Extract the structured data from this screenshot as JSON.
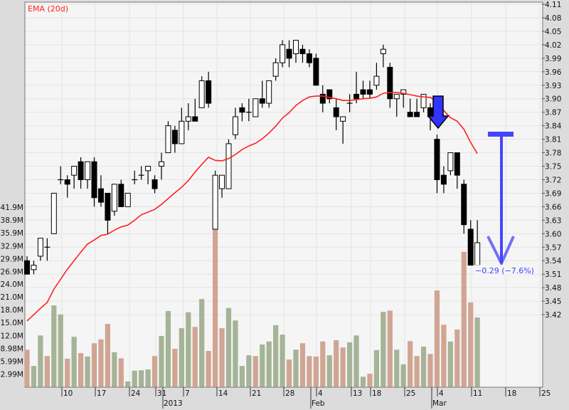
{
  "chart_data": {
    "type": "candlestick",
    "legend": {
      "ema_label": "EMA (20d)",
      "placement": "top-left"
    },
    "colors": {
      "ema": "#ff2020",
      "volume_up": "#a5b396",
      "volume_down": "#d0a593",
      "annotation": "#3333ff",
      "measure_label": "#4444ff",
      "plot_bg": "#f5f5f5",
      "grid": "#e4e4e4"
    },
    "grid": true,
    "price_axis": {
      "side": "right",
      "range": [
        3.42,
        4.11
      ],
      "ticks": [
        "4.11",
        "4.08",
        "4.05",
        "4.02",
        "3.99",
        "3.96",
        "3.93",
        "3.90",
        "3.87",
        "3.84",
        "3.81",
        "3.78",
        "3.75",
        "3.72",
        "3.69",
        "3.66",
        "3.63",
        "3.60",
        "3.57",
        "3.54",
        "3.51",
        "3.48",
        "3.45",
        "3.42"
      ]
    },
    "volume_axis": {
      "side": "left",
      "ticks": [
        {
          "label": "41.9M",
          "value": 41.9
        },
        {
          "label": "38.9M",
          "value": 38.9
        },
        {
          "label": "35.9M",
          "value": 35.9
        },
        {
          "label": "32.9M",
          "value": 32.9
        },
        {
          "label": "29.9M",
          "value": 29.9
        },
        {
          "label": "26.9M",
          "value": 26.9
        },
        {
          "label": "24.0M",
          "value": 24.0
        },
        {
          "label": "21.0M",
          "value": 21.0
        },
        {
          "label": "18.0M",
          "value": 18.0
        },
        {
          "label": "15.0M",
          "value": 15.0
        },
        {
          "label": "12.0M",
          "value": 12.0
        },
        {
          "label": "8.98M",
          "value": 8.98
        },
        {
          "label": "5.99M",
          "value": 5.99
        },
        {
          "label": "2.99M",
          "value": 2.99
        }
      ]
    },
    "x_axis": {
      "day_ticks": [
        "10",
        "17",
        "24",
        "31",
        "7",
        "14",
        "21",
        "28",
        "4",
        "13",
        "18",
        "25",
        "4",
        "11",
        "18",
        "25"
      ],
      "month_labels": [
        "2013",
        "Feb",
        "Mar"
      ]
    },
    "ohlc": [
      [
        3.54,
        3.55,
        3.51,
        3.51
      ],
      [
        3.52,
        3.54,
        3.51,
        3.53
      ],
      [
        3.55,
        3.59,
        3.54,
        3.59
      ],
      [
        3.57,
        3.59,
        3.54,
        3.57
      ],
      [
        3.6,
        3.69,
        3.6,
        3.69
      ],
      [
        3.72,
        3.75,
        3.71,
        3.72
      ],
      [
        3.72,
        3.73,
        3.68,
        3.71
      ],
      [
        3.73,
        3.75,
        3.7,
        3.75
      ],
      [
        3.76,
        3.77,
        3.7,
        3.72
      ],
      [
        3.72,
        3.76,
        3.7,
        3.76
      ],
      [
        3.76,
        3.77,
        3.66,
        3.68
      ],
      [
        3.7,
        3.73,
        3.66,
        3.67
      ],
      [
        3.69,
        3.69,
        3.6,
        3.63
      ],
      [
        3.65,
        3.71,
        3.64,
        3.71
      ],
      [
        3.71,
        3.72,
        3.66,
        3.66
      ],
      [
        3.66,
        3.69,
        3.66,
        3.69
      ],
      [
        3.72,
        3.74,
        3.71,
        3.72
      ],
      [
        3.73,
        3.75,
        3.72,
        3.73
      ],
      [
        3.74,
        3.75,
        3.71,
        3.75
      ],
      [
        3.72,
        3.73,
        3.69,
        3.7
      ],
      [
        3.75,
        3.78,
        3.72,
        3.76
      ],
      [
        3.78,
        3.85,
        3.78,
        3.84
      ],
      [
        3.83,
        3.84,
        3.78,
        3.8
      ],
      [
        3.8,
        3.88,
        3.8,
        3.85
      ],
      [
        3.85,
        3.89,
        3.83,
        3.86
      ],
      [
        3.86,
        3.9,
        3.85,
        3.85
      ],
      [
        3.88,
        3.95,
        3.88,
        3.94
      ],
      [
        3.94,
        3.96,
        3.88,
        3.89
      ],
      [
        3.61,
        3.74,
        3.61,
        3.73
      ],
      [
        3.7,
        3.73,
        3.68,
        3.73
      ],
      [
        3.7,
        3.81,
        3.7,
        3.8
      ],
      [
        3.82,
        3.88,
        3.81,
        3.86
      ],
      [
        3.88,
        3.89,
        3.85,
        3.87
      ],
      [
        3.87,
        3.9,
        3.85,
        3.87
      ],
      [
        3.86,
        3.9,
        3.86,
        3.9
      ],
      [
        3.9,
        3.94,
        3.88,
        3.89
      ],
      [
        3.89,
        3.94,
        3.88,
        3.94
      ],
      [
        3.95,
        3.99,
        3.94,
        3.98
      ],
      [
        3.98,
        4.03,
        3.97,
        4.02
      ],
      [
        4.01,
        4.03,
        3.97,
        3.99
      ],
      [
        4.0,
        4.03,
        3.98,
        4.03
      ],
      [
        4.01,
        4.02,
        3.98,
        4.0
      ],
      [
        4.0,
        4.01,
        3.97,
        3.98
      ],
      [
        3.99,
        4.0,
        3.93,
        3.93
      ],
      [
        3.91,
        3.93,
        3.87,
        3.89
      ],
      [
        3.92,
        3.92,
        3.89,
        3.9
      ],
      [
        3.88,
        3.9,
        3.83,
        3.86
      ],
      [
        3.85,
        3.86,
        3.8,
        3.86
      ],
      [
        3.89,
        3.91,
        3.87,
        3.89
      ],
      [
        3.91,
        3.96,
        3.89,
        3.9
      ],
      [
        3.92,
        3.94,
        3.9,
        3.91
      ],
      [
        3.92,
        3.94,
        3.9,
        3.91
      ],
      [
        3.93,
        3.98,
        3.92,
        3.95
      ],
      [
        4.0,
        4.02,
        3.97,
        4.01
      ],
      [
        3.97,
        3.98,
        3.88,
        3.9
      ],
      [
        3.9,
        3.91,
        3.86,
        3.91
      ],
      [
        3.91,
        3.92,
        3.88,
        3.92
      ],
      [
        3.87,
        3.9,
        3.86,
        3.86
      ],
      [
        3.87,
        3.9,
        3.86,
        3.86
      ],
      [
        3.88,
        3.91,
        3.87,
        3.91
      ],
      [
        3.88,
        3.89,
        3.83,
        3.86
      ],
      [
        3.81,
        3.82,
        3.69,
        3.72
      ],
      [
        3.73,
        3.75,
        3.69,
        3.71
      ],
      [
        3.74,
        3.78,
        3.73,
        3.78
      ],
      [
        3.78,
        3.78,
        3.7,
        3.73
      ],
      [
        3.71,
        3.72,
        3.6,
        3.62
      ],
      [
        3.61,
        3.63,
        3.53,
        3.53
      ],
      [
        3.53,
        3.63,
        3.53,
        3.58
      ]
    ],
    "ema20": [
      3.406,
      3.42,
      3.434,
      3.447,
      3.477,
      3.499,
      3.521,
      3.54,
      3.559,
      3.577,
      3.586,
      3.596,
      3.599,
      3.608,
      3.615,
      3.619,
      3.63,
      3.642,
      3.648,
      3.654,
      3.665,
      3.678,
      3.691,
      3.703,
      3.718,
      3.737,
      3.754,
      3.77,
      3.763,
      3.762,
      3.767,
      3.776,
      3.787,
      3.795,
      3.801,
      3.811,
      3.824,
      3.839,
      3.857,
      3.869,
      3.885,
      3.896,
      3.904,
      3.906,
      3.906,
      3.903,
      3.9,
      3.896,
      3.896,
      3.898,
      3.9,
      3.901,
      3.904,
      3.912,
      3.914,
      3.914,
      3.912,
      3.909,
      3.906,
      3.904,
      3.903,
      3.893,
      3.874,
      3.858,
      3.85,
      3.832,
      3.803,
      3.778
    ],
    "volume_millions": [
      8.7,
      4.9,
      12.0,
      7.2,
      19.0,
      16.9,
      6.6,
      11.7,
      7.9,
      7.1,
      10.2,
      11.1,
      14.7,
      8.1,
      6.7,
      1.3,
      3.8,
      3.9,
      4.1,
      7.2,
      11.9,
      17.7,
      8.9,
      13.7,
      17.4,
      14.0,
      20.5,
      8.4,
      36.7,
      13.7,
      18.4,
      15.5,
      4.9,
      7.4,
      7.2,
      9.9,
      10.6,
      14.4,
      12.2,
      6.4,
      8.7,
      10.2,
      7.2,
      7.1,
      10.6,
      7.4,
      10.9,
      9.2,
      10.4,
      12.0,
      2.4,
      3.1,
      8.6,
      17.5,
      17.8,
      8.7,
      5.3,
      10.7,
      7.2,
      9.4,
      7.7,
      22.5,
      14.5,
      10.6,
      13.4,
      31.5,
      19.7,
      16.2
    ],
    "volume_up": [
      0,
      1,
      1,
      0,
      1,
      1,
      0,
      1,
      0,
      1,
      0,
      0,
      0,
      1,
      0,
      1,
      1,
      1,
      1,
      0,
      1,
      1,
      0,
      1,
      1,
      0,
      1,
      0,
      0,
      0,
      1,
      1,
      1,
      1,
      0,
      1,
      1,
      1,
      1,
      0,
      1,
      0,
      0,
      0,
      0,
      1,
      0,
      0,
      1,
      1,
      1,
      0,
      1,
      1,
      0,
      1,
      1,
      0,
      0,
      1,
      0,
      0,
      0,
      1,
      0,
      0,
      0,
      1
    ],
    "annotations": {
      "signal_arrow": {
        "direction": "down",
        "at_candle": 61
      },
      "measure": {
        "from_price": 3.82,
        "to_price": 3.53,
        "label": "−0.29 (−7.6%)"
      }
    }
  }
}
